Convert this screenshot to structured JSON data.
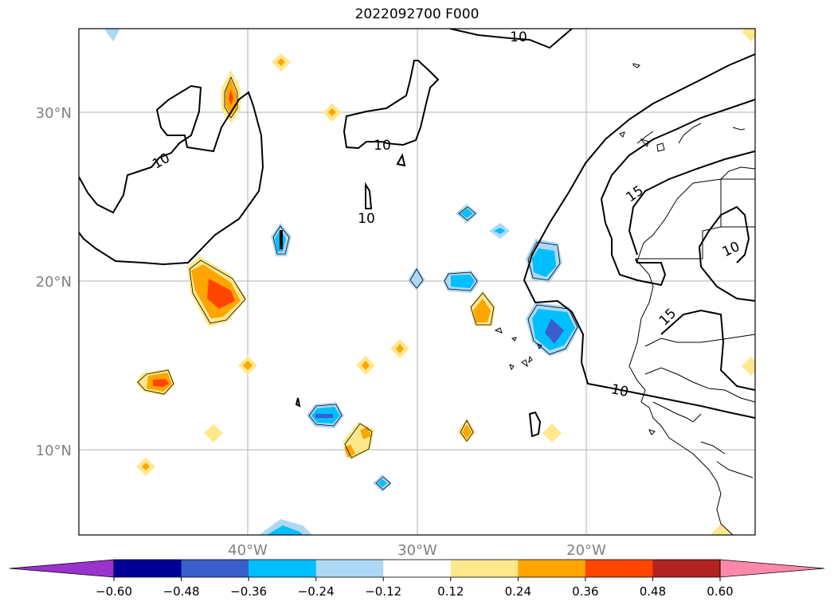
{
  "title": "2022092700 F000",
  "map": {
    "lat_labels": [
      "30°N",
      "20°N",
      "10°N"
    ],
    "lon_labels": [
      "40°W",
      "30°W",
      "20°W"
    ],
    "contour_labels": [
      "10",
      "10",
      "10",
      "10",
      "15",
      "10",
      "15",
      "10"
    ]
  },
  "colorbar": {
    "ticks": [
      "−0.60",
      "−0.48",
      "−0.36",
      "−0.24",
      "−0.12",
      "0.12",
      "0.24",
      "0.36",
      "0.48",
      "0.60"
    ],
    "colors": [
      "#9933cc",
      "#000099",
      "#3a5fcd",
      "#00bfff",
      "#add8f5",
      "#ffffff",
      "#ffe88c",
      "#ffa500",
      "#ff4500",
      "#b22222",
      "#ff88aa"
    ]
  }
}
